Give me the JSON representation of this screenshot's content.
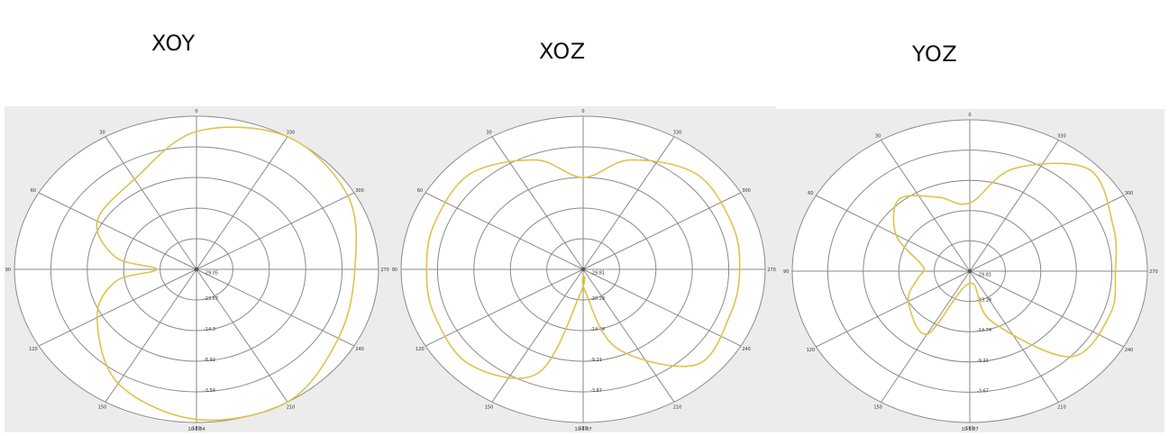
{
  "titles": {
    "xoy": "XOY",
    "xoz": "XOZ",
    "yoz": "YOZ"
  },
  "colors": {
    "pattern": "#e0c24a",
    "grid": "#8a8a8a",
    "plot_background": "#ececec"
  },
  "chart_data": [
    {
      "type": "polar-line",
      "title": "XOY",
      "angle_ticks": [
        "0",
        "30",
        "60",
        "90",
        "120",
        "150",
        "180",
        "210",
        "240",
        "270",
        "300",
        "330"
      ],
      "angle_unit": "deg",
      "angle_direction": "counterclockwise, 0 at top",
      "radial_ticks": [
        "-29.05",
        "-23.67",
        "-14.3",
        "-8.92",
        "-3.54",
        "10.1.84"
      ],
      "series": [
        {
          "angles": [
            0,
            30,
            60,
            80,
            90,
            100,
            120,
            150,
            180,
            210,
            240,
            270,
            300,
            330
          ],
          "radius_fraction": [
            0.9,
            0.68,
            0.63,
            0.45,
            0.22,
            0.45,
            0.63,
            0.86,
            0.98,
            1.0,
            0.9,
            0.87,
            0.96,
            1.0
          ]
        }
      ]
    },
    {
      "type": "polar-line",
      "title": "XOZ",
      "angle_ticks": [
        "0",
        "30",
        "60",
        "90",
        "120",
        "150",
        "180",
        "210",
        "240",
        "270",
        "300",
        "330"
      ],
      "angle_unit": "deg",
      "angle_direction": "counterclockwise, 0 at top",
      "radial_ticks": [
        "-29.81",
        "-20.28",
        "-14.74",
        "-9.21",
        "-3.67",
        "10.1.87"
      ],
      "series": [
        {
          "angles": [
            0,
            20,
            45,
            70,
            90,
            110,
            135,
            160,
            175,
            180,
            185,
            200,
            225,
            250,
            270,
            290,
            315,
            340
          ],
          "radius_fraction": [
            0.6,
            0.76,
            0.88,
            0.87,
            0.86,
            0.87,
            0.88,
            0.72,
            0.15,
            0.04,
            0.15,
            0.55,
            0.88,
            0.86,
            0.86,
            0.87,
            0.88,
            0.76
          ]
        }
      ]
    },
    {
      "type": "polar-line",
      "title": "YOZ",
      "angle_ticks": [
        "0",
        "30",
        "60",
        "90",
        "120",
        "150",
        "180",
        "210",
        "240",
        "270",
        "300",
        "330"
      ],
      "angle_unit": "deg",
      "angle_direction": "counterclockwise, 0 at top",
      "radial_ticks": [
        "-29.81",
        "-23.28",
        "-14.74",
        "-9.21",
        "-3.67",
        "10.1.87"
      ],
      "series": [
        {
          "angles": [
            0,
            20,
            40,
            60,
            80,
            90,
            100,
            120,
            150,
            180,
            200,
            225,
            250,
            270,
            290,
            315,
            340
          ],
          "radius_fraction": [
            0.45,
            0.52,
            0.62,
            0.48,
            0.28,
            0.26,
            0.3,
            0.4,
            0.48,
            0.08,
            0.35,
            0.8,
            0.84,
            0.82,
            0.86,
            0.95,
            0.72
          ]
        }
      ]
    }
  ]
}
